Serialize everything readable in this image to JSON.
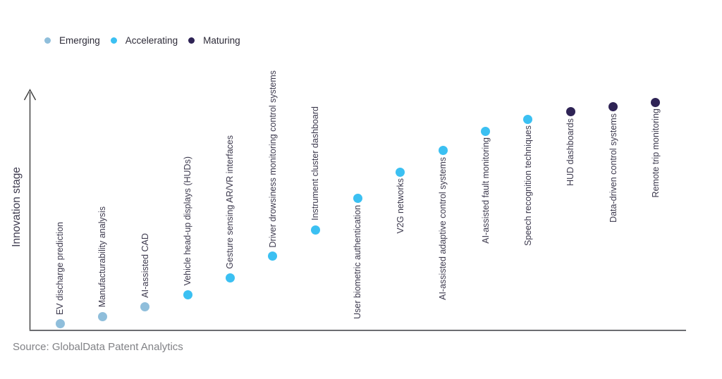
{
  "legend": [
    {
      "label": "Emerging",
      "color": "#8fbedb"
    },
    {
      "label": "Accelerating",
      "color": "#3bc0f2"
    },
    {
      "label": "Maturing",
      "color": "#2e2355"
    }
  ],
  "source": "Source: GlobalData Patent Analytics",
  "chart_data": {
    "type": "scatter",
    "title": "",
    "xlabel": "",
    "ylabel": "Innovation stage",
    "legend_position": "top-left",
    "yaxis": {
      "arrow": true,
      "ticks": "none",
      "range_note": "qualitative innovation stage, low to high"
    },
    "stage_colors": {
      "Emerging": "#8fbedb",
      "Accelerating": "#3bc0f2",
      "Maturing": "#2e2355"
    },
    "points": [
      {
        "label": "EV discharge prediction",
        "stage": "Emerging",
        "value": 0.03,
        "label_position": "above"
      },
      {
        "label": "Manufacturability analysis",
        "stage": "Emerging",
        "value": 0.06,
        "label_position": "above"
      },
      {
        "label": "AI-assisted CAD",
        "stage": "Emerging",
        "value": 0.1,
        "label_position": "above"
      },
      {
        "label": "Vehicle head-up displays (HUDs)",
        "stage": "Accelerating",
        "value": 0.15,
        "label_position": "above"
      },
      {
        "label": "Gesture sensing AR/VR interfaces",
        "stage": "Accelerating",
        "value": 0.22,
        "label_position": "above"
      },
      {
        "label": "Driver drowsiness monitoring control systems",
        "stage": "Accelerating",
        "value": 0.31,
        "label_position": "above"
      },
      {
        "label": "Instrument cluster dashboard",
        "stage": "Accelerating",
        "value": 0.42,
        "label_position": "above"
      },
      {
        "label": "User biometric authentication",
        "stage": "Accelerating",
        "value": 0.55,
        "label_position": "below"
      },
      {
        "label": "V2G networks",
        "stage": "Accelerating",
        "value": 0.66,
        "label_position": "below"
      },
      {
        "label": "AI-assisted adaptive control systems",
        "stage": "Accelerating",
        "value": 0.75,
        "label_position": "below"
      },
      {
        "label": "AI-assisted fault monitoring",
        "stage": "Accelerating",
        "value": 0.83,
        "label_position": "below"
      },
      {
        "label": "Speech recognition techniques",
        "stage": "Accelerating",
        "value": 0.88,
        "label_position": "below"
      },
      {
        "label": "HUD dashboards",
        "stage": "Maturing",
        "value": 0.91,
        "label_position": "below"
      },
      {
        "label": "Data-driven control systems",
        "stage": "Maturing",
        "value": 0.93,
        "label_position": "below"
      },
      {
        "label": "Remote trip monitoring",
        "stage": "Maturing",
        "value": 0.95,
        "label_position": "below"
      }
    ]
  }
}
